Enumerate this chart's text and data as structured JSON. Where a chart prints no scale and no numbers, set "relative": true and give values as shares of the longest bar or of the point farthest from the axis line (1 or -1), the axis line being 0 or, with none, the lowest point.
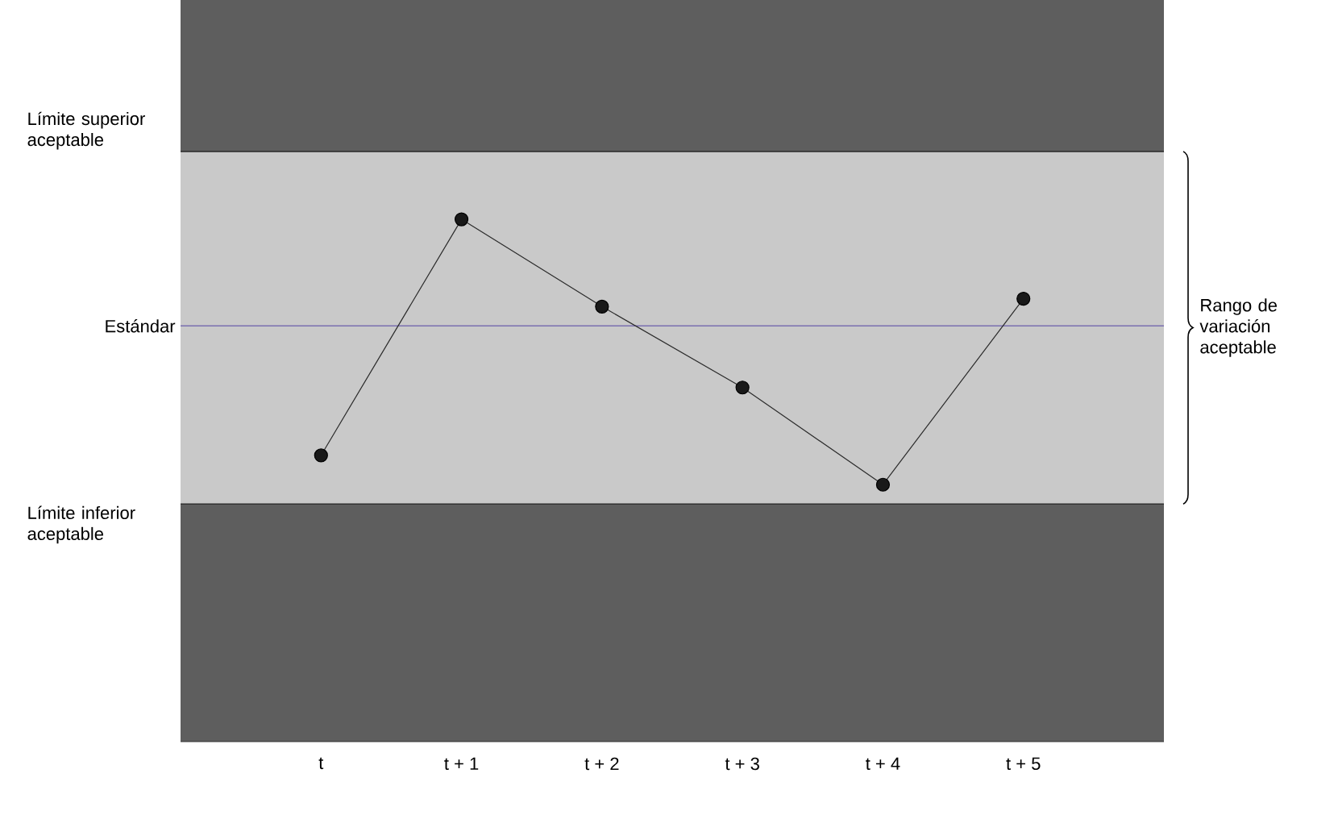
{
  "chart_data": {
    "type": "line",
    "relative": true,
    "categories": [
      "t",
      "t + 1",
      "t + 2",
      "t + 3",
      "t + 4",
      "t + 5"
    ],
    "series": [
      {
        "color": "#2b2b2b",
        "values": [
          0.548,
          1,
          0.833,
          0.678,
          0.492,
          0.848
        ]
      }
    ],
    "marker": "circle",
    "line_style": "solid",
    "bands": [
      {
        "axis": "y",
        "from": 0,
        "to": 0.455,
        "color": "#5e5e5e"
      },
      {
        "axis": "y",
        "from": 0.455,
        "to": 1.13,
        "color": "#c9c9c9",
        "label": "Rango de variación aceptable"
      },
      {
        "axis": "y",
        "from": 1.13,
        "to": 1.42,
        "color": "#5e5e5e"
      }
    ],
    "ref_lines": [
      {
        "axis": "y",
        "value": 1.13,
        "label": "Límite superior aceptable",
        "color": "#303030"
      },
      {
        "axis": "y",
        "value": 0.796,
        "label": "Estándar",
        "color": "#7a6fb0"
      },
      {
        "axis": "y",
        "value": 0.455,
        "label": "Límite inferior aceptable",
        "color": "#303030"
      }
    ]
  }
}
